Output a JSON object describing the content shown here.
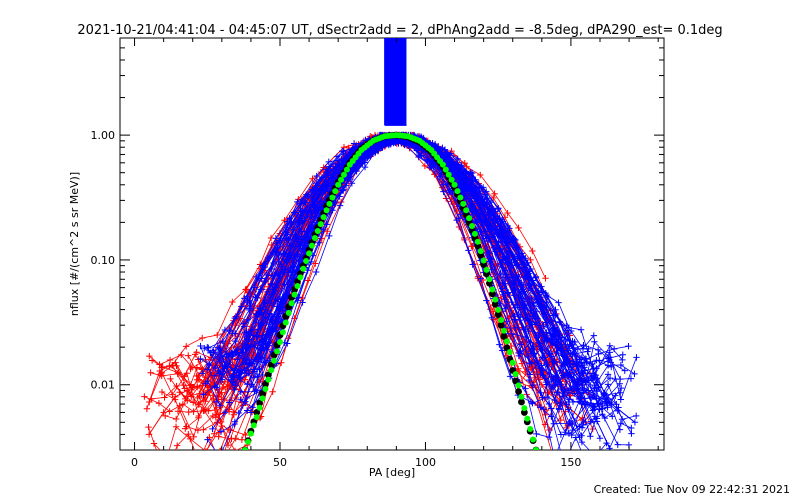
{
  "chart_data": {
    "type": "scatter",
    "title": "2021-10-21/04:41:04 - 04:45:07 UT, dSectr2add = 2, dPhAng2add = -8.5deg, dPA290_est=  0.1deg",
    "xlabel": "PA [deg]",
    "ylabel": "nflux [#/(cm^2 s sr MeV)]",
    "x_scale": "linear",
    "y_scale": "log",
    "xlim": [
      -5,
      182
    ],
    "ylim": [
      0.003,
      6
    ],
    "x_ticks": [
      0,
      50,
      100,
      150
    ],
    "x_tick_labels": [
      "0",
      "50",
      "100",
      "150"
    ],
    "y_ticks": [
      0.01,
      0.1,
      1.0
    ],
    "y_tick_labels": [
      "0.01",
      "0.10",
      "1.00"
    ],
    "grid": false,
    "footer": "Created: Tue Nov 09 22:42:31 2021",
    "colors": {
      "red_traces": "#ff0000",
      "blue_traces": "#0000ff",
      "black_fit": "#000000",
      "green_fit": "#00ff00"
    },
    "series": [
      {
        "color": "#ff0000",
        "marker": "plus",
        "x": [
          5,
          10,
          14,
          18,
          22,
          28,
          35,
          42,
          50,
          58,
          65,
          72,
          80,
          88,
          95,
          102,
          110,
          118,
          125,
          132,
          140,
          148,
          155
        ],
        "y": [
          0.004,
          0.006,
          0.008,
          0.009,
          0.007,
          0.01,
          0.02,
          0.05,
          0.12,
          0.3,
          0.55,
          0.8,
          0.9,
          0.95,
          0.9,
          0.75,
          0.45,
          0.15,
          0.05,
          0.018,
          0.01,
          0.007,
          0.005
        ]
      },
      {
        "color": "#0000ff",
        "marker": "plus",
        "x": [
          25,
          30,
          38,
          45,
          52,
          60,
          68,
          76,
          84,
          92,
          100,
          108,
          116,
          124,
          132,
          140,
          148,
          156,
          164,
          172
        ],
        "y": [
          0.02,
          0.012,
          0.015,
          0.04,
          0.1,
          0.25,
          0.45,
          0.7,
          0.9,
          1.0,
          0.8,
          0.5,
          0.28,
          0.12,
          0.05,
          0.02,
          0.012,
          0.009,
          0.007,
          0.005
        ]
      },
      {
        "name": "",
        "color": "#000000",
        "marker": "dot",
        "x": [
          38,
          42,
          46,
          50,
          54,
          58,
          62,
          66,
          70,
          74,
          78,
          82,
          86,
          90,
          94,
          98,
          102,
          106,
          110,
          114,
          118,
          122,
          126,
          130,
          134,
          138
        ],
        "y": [
          0.003,
          0.006,
          0.012,
          0.025,
          0.05,
          0.09,
          0.16,
          0.27,
          0.42,
          0.6,
          0.78,
          0.9,
          0.98,
          1.0,
          0.97,
          0.88,
          0.74,
          0.56,
          0.38,
          0.23,
          0.13,
          0.065,
          0.03,
          0.013,
          0.006,
          0.003
        ]
      },
      {
        "name": "",
        "color": "#00ff00",
        "marker": "dot",
        "x": [
          38,
          42,
          46,
          50,
          54,
          58,
          62,
          66,
          70,
          74,
          78,
          82,
          86,
          90,
          94,
          98,
          102,
          106,
          110,
          114,
          118,
          122,
          126,
          130,
          134,
          138
        ],
        "y": [
          0.003,
          0.0055,
          0.011,
          0.022,
          0.045,
          0.085,
          0.15,
          0.25,
          0.4,
          0.58,
          0.76,
          0.9,
          0.98,
          1.0,
          0.98,
          0.9,
          0.76,
          0.58,
          0.4,
          0.25,
          0.14,
          0.07,
          0.033,
          0.015,
          0.0065,
          0.003
        ]
      }
    ]
  }
}
